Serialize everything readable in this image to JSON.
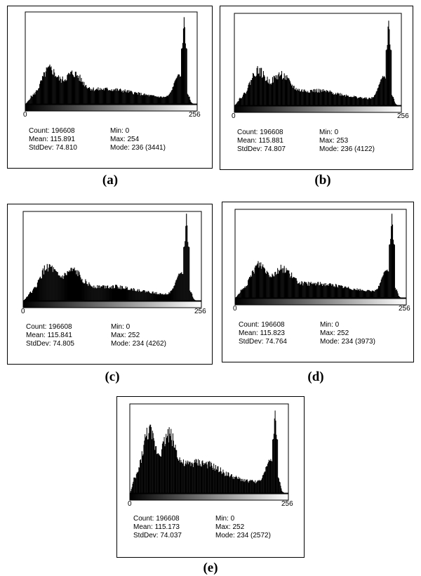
{
  "chart_data": [
    {
      "type": "bar",
      "panel_label": "(a)",
      "x_range": [
        0,
        256
      ],
      "x_ticks": [
        "0",
        "256"
      ],
      "stats": {
        "count": "Count: 196608",
        "mean": "Mean: 115.891",
        "stddev": "StdDev: 74.810",
        "min": "Min: 0",
        "max": "Max: 254",
        "mode": "Mode: 236 (3441)"
      },
      "spike_center": 236,
      "shape": "a"
    },
    {
      "type": "bar",
      "panel_label": "(b)",
      "x_range": [
        0,
        256
      ],
      "x_ticks": [
        "0",
        "256"
      ],
      "stats": {
        "count": "Count: 196608",
        "mean": "Mean: 115.881",
        "stddev": "StdDev: 74.807",
        "min": "Min: 0",
        "max": "Max: 253",
        "mode": "Mode: 236 (4122)"
      },
      "spike_center": 236,
      "shape": "b"
    },
    {
      "type": "bar",
      "panel_label": "(c)",
      "x_range": [
        0,
        256
      ],
      "x_ticks": [
        "0",
        "256"
      ],
      "stats": {
        "count": "Count: 196608",
        "mean": "Mean: 115.841",
        "stddev": "StdDev: 74.805",
        "min": "Min: 0",
        "max": "Max: 252",
        "mode": "Mode: 234 (4262)"
      },
      "spike_center": 234,
      "shape": "c"
    },
    {
      "type": "bar",
      "panel_label": "(d)",
      "x_range": [
        0,
        256
      ],
      "x_ticks": [
        "0",
        "256"
      ],
      "stats": {
        "count": "Count: 196608",
        "mean": "Mean: 115.823",
        "stddev": "StdDev: 74.764",
        "min": "Min: 0",
        "max": "Max: 252",
        "mode": "Mode: 234 (3973)"
      },
      "spike_center": 234,
      "shape": "d"
    },
    {
      "type": "bar",
      "panel_label": "(e)",
      "x_range": [
        0,
        256
      ],
      "x_ticks": [
        "0",
        "256"
      ],
      "stats": {
        "count": "Count: 196608",
        "mean": "Mean: 115.173",
        "stddev": "StdDev: 74.037",
        "min": "Min: 0",
        "max": "Max: 252",
        "mode": "Mode: 234 (2572)"
      },
      "spike_center": 234,
      "shape": "e"
    }
  ]
}
